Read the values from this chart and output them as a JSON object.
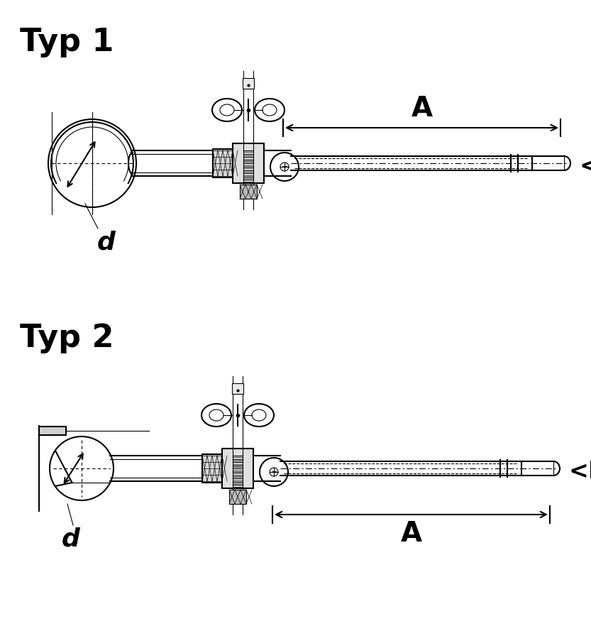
{
  "bg_color": "#ffffff",
  "line_color": "#000000",
  "title1": "Typ 1",
  "title2": "Typ 2",
  "label_d": "d",
  "label_A": "A",
  "label_D": "<D",
  "title_fontsize": 32,
  "label_fontsize": 24,
  "dim_fontsize": 28,
  "figsize": [
    8.33,
    8.75
  ],
  "dpi": 100
}
